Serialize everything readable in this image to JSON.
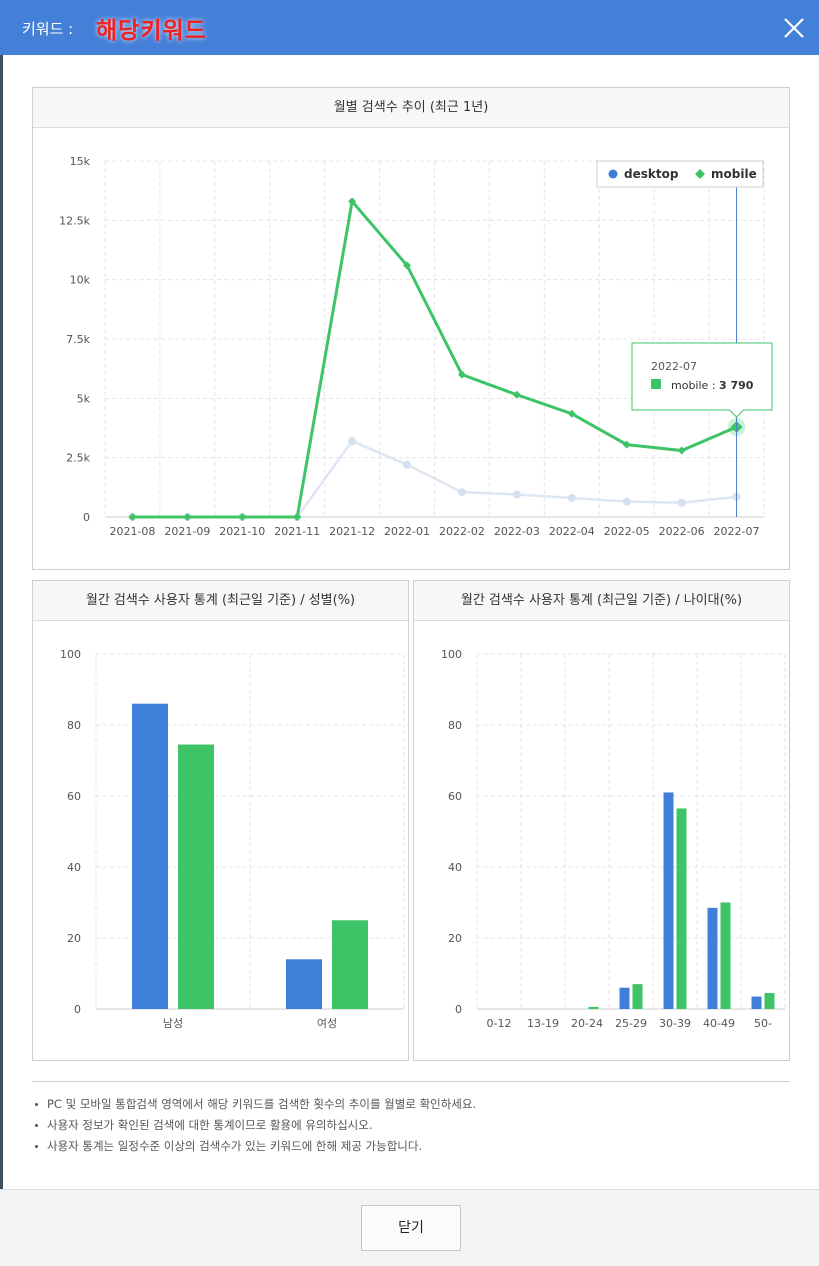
{
  "header": {
    "label": "키워드 :",
    "keyword": "해당키워드"
  },
  "trend_chart": {
    "title": "월별 검색수 추이 (최근 1년)"
  },
  "gender_chart": {
    "title": "월간 검색수 사용자 통계 (최근일 기준) / 성별(%)"
  },
  "age_chart": {
    "title": "월간 검색수 사용자 통계 (최근일 기준) / 나이대(%)"
  },
  "tooltip": {
    "title": "2022-07",
    "series": "mobile",
    "value": "3 790"
  },
  "notes": [
    "PC 및 모바일 통합검색 영역에서 해당 키워드를 검색한 횟수의 추이를 월별로 확인하세요.",
    "사용자 정보가 확인된 검색에 대한 통계이므로 활용에 유의하십시오.",
    "사용자 통계는 일정수준 이상의 검색수가 있는 키워드에 한해 제공 가능합니다."
  ],
  "footer": {
    "close_label": "닫기"
  },
  "colors": {
    "header": "#4580d8",
    "desktop": "#3f7fda",
    "mobile": "#3ec467",
    "keyword": "#ee2222"
  },
  "chart_data": [
    {
      "type": "line",
      "categories": [
        "2021-08",
        "2021-09",
        "2021-10",
        "2021-11",
        "2021-12",
        "2022-01",
        "2022-02",
        "2022-03",
        "2022-04",
        "2022-05",
        "2022-06",
        "2022-07"
      ],
      "series": [
        {
          "name": "desktop",
          "values": [
            0,
            0,
            0,
            0,
            3200,
            2200,
            1050,
            950,
            800,
            650,
            600,
            850
          ]
        },
        {
          "name": "mobile",
          "values": [
            0,
            0,
            0,
            0,
            13300,
            10600,
            6000,
            5150,
            4350,
            3050,
            2800,
            3790
          ]
        }
      ],
      "yticks": [
        "0",
        "2.5k",
        "5k",
        "7.5k",
        "10k",
        "12.5k",
        "15k"
      ],
      "ylim": [
        0,
        15000
      ],
      "legend": "top-right",
      "grid": true,
      "highlight": "2022-07"
    },
    {
      "type": "bar",
      "categories": [
        "남성",
        "여성"
      ],
      "series": [
        {
          "name": "desktop",
          "values": [
            86,
            14
          ]
        },
        {
          "name": "mobile",
          "values": [
            74.5,
            25
          ]
        }
      ],
      "yticks": [
        "0",
        "20",
        "40",
        "60",
        "80",
        "100"
      ],
      "ylim": [
        0,
        100
      ],
      "grid": true
    },
    {
      "type": "bar",
      "categories": [
        "0-12",
        "13-19",
        "20-24",
        "25-29",
        "30-39",
        "40-49",
        "50-"
      ],
      "series": [
        {
          "name": "desktop",
          "values": [
            0,
            0,
            0,
            6,
            61,
            28.5,
            3.5
          ]
        },
        {
          "name": "mobile",
          "values": [
            0,
            0,
            0.6,
            7,
            56.5,
            30,
            4.5
          ]
        }
      ],
      "yticks": [
        "0",
        "20",
        "40",
        "60",
        "80",
        "100"
      ],
      "ylim": [
        0,
        100
      ],
      "grid": true
    }
  ]
}
